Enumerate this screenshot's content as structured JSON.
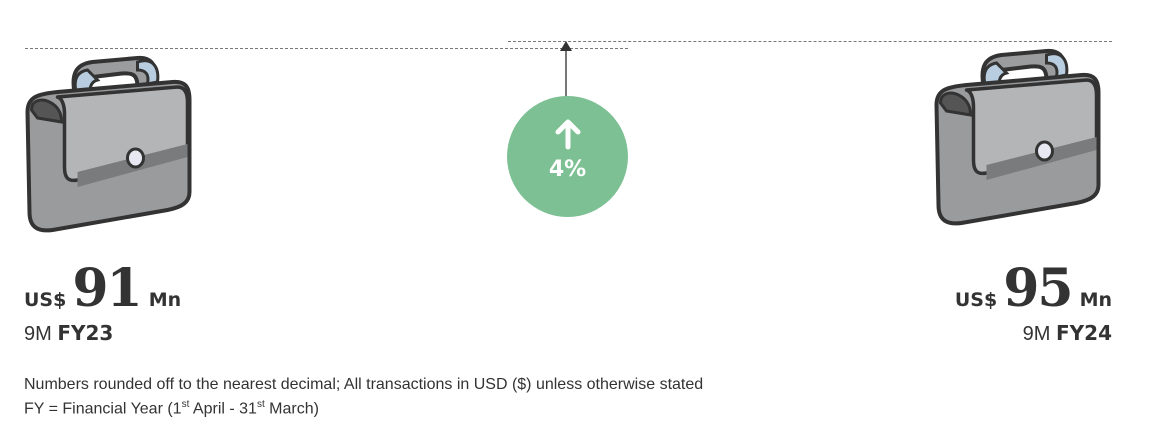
{
  "colors": {
    "accent": "#7dc093",
    "text": "#333333",
    "briefcase": "#9a9b9d"
  },
  "left": {
    "currency": "US$",
    "value": "91",
    "unit": "Mn",
    "period_prefix": "9M",
    "period": "FY23",
    "icon": "briefcase-icon"
  },
  "right": {
    "currency": "US$",
    "value": "95",
    "unit": "Mn",
    "period_prefix": "9M",
    "period": "FY24",
    "icon": "briefcase-icon"
  },
  "change": {
    "direction": "up",
    "icon": "arrow-up-icon",
    "label": "4%"
  },
  "footnote": {
    "line1": "Numbers rounded off to the nearest decimal; All transactions in USD ($) unless otherwise stated",
    "line2_a": "FY = Financial Year (1",
    "line2_sup1": "st",
    "line2_b": " April - 31",
    "line2_sup2": "st",
    "line2_c": " March)"
  }
}
